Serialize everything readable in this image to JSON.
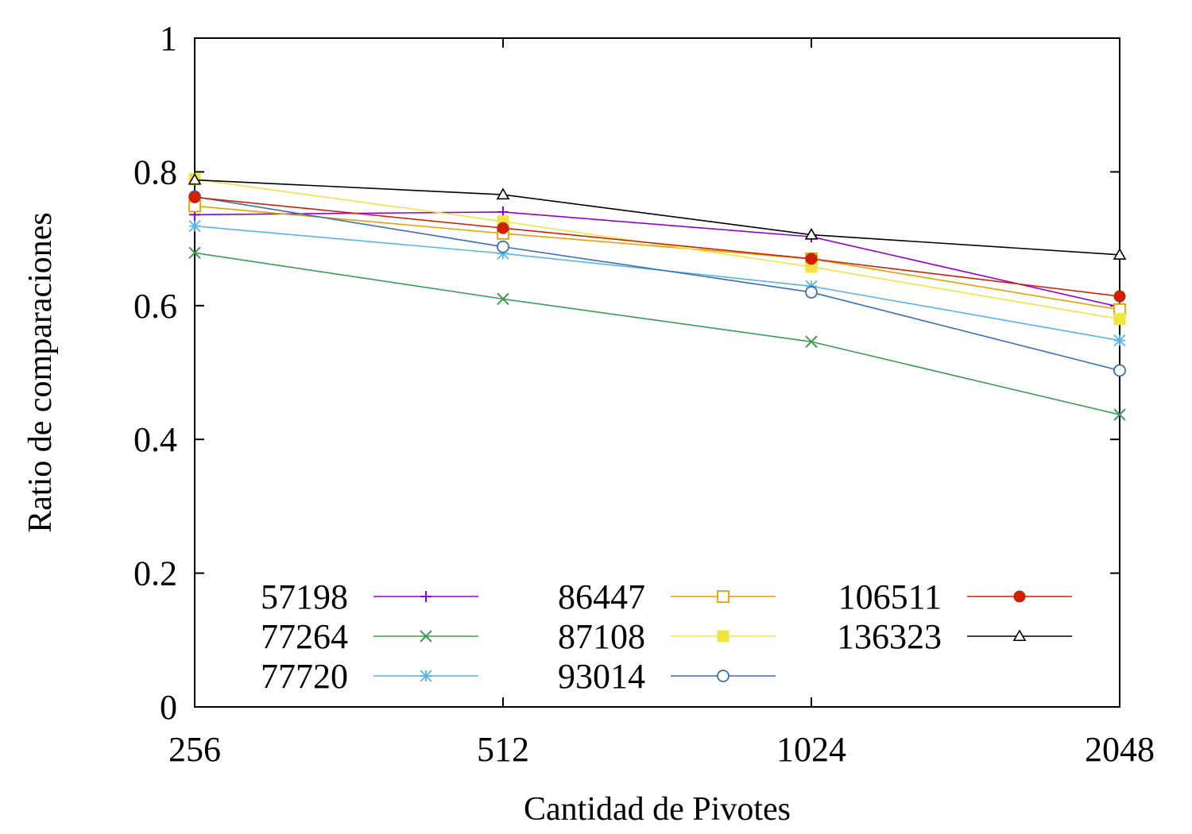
{
  "chart_data": {
    "type": "line",
    "xlabel": "Cantidad de Pivotes",
    "ylabel": "Ratio de comparaciones",
    "x": [
      256,
      512,
      1024,
      2048
    ],
    "x_tick_labels": [
      "256",
      "512",
      "1024",
      "2048"
    ],
    "y_ticks": [
      0,
      0.2,
      0.4,
      0.6,
      0.8,
      1
    ],
    "y_tick_labels": [
      "0",
      "0.2",
      "0.4",
      "0.6",
      "0.8",
      "1"
    ],
    "xlim": [
      256,
      2048
    ],
    "ylim": [
      0,
      1
    ],
    "grid": false,
    "legend_position": "bottom, inside plot, three columns",
    "series": [
      {
        "name": "57198",
        "color": "#9400d3",
        "marker": "plus",
        "values": [
          0.736,
          0.74,
          0.703,
          0.598
        ]
      },
      {
        "name": "77264",
        "color": "#3d9a53",
        "marker": "cross",
        "values": [
          0.679,
          0.61,
          0.546,
          0.437
        ]
      },
      {
        "name": "77720",
        "color": "#56b4e9",
        "marker": "asterisk",
        "values": [
          0.719,
          0.678,
          0.629,
          0.548
        ]
      },
      {
        "name": "86447",
        "color": "#e69f00",
        "marker": "open-square",
        "values": [
          0.749,
          0.708,
          0.67,
          0.594
        ]
      },
      {
        "name": "87108",
        "color": "#f0e442",
        "marker": "filled-square",
        "values": [
          0.789,
          0.726,
          0.658,
          0.58
        ]
      },
      {
        "name": "93014",
        "color": "#3a6fb0",
        "marker": "open-circle",
        "values": [
          0.763,
          0.688,
          0.62,
          0.503
        ]
      },
      {
        "name": "106511",
        "color": "#cc2200",
        "marker": "filled-circle",
        "values": [
          0.762,
          0.716,
          0.67,
          0.614
        ]
      },
      {
        "name": "136323",
        "color": "#000000",
        "marker": "open-triangle",
        "values": [
          0.788,
          0.766,
          0.706,
          0.676
        ]
      }
    ]
  }
}
